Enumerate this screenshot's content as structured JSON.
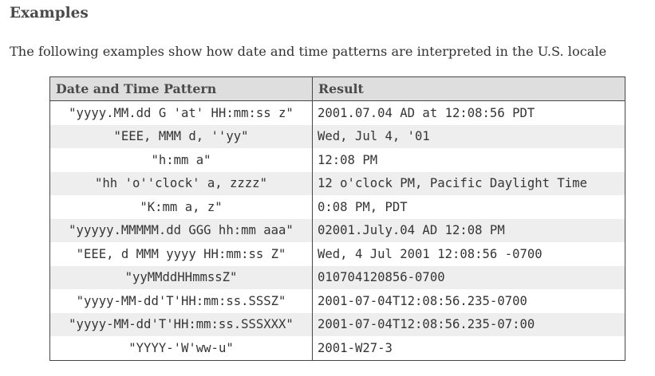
{
  "heading": "Examples",
  "intro": "The following examples show how date and time patterns are interpreted in the U.S. locale",
  "table": {
    "columns": [
      "Date and Time Pattern",
      "Result"
    ],
    "rows": [
      {
        "pattern": "\"yyyy.MM.dd G 'at' HH:mm:ss z\"",
        "result": "2001.07.04 AD at 12:08:56 PDT"
      },
      {
        "pattern": "\"EEE, MMM d, ''yy\"",
        "result": "Wed, Jul 4, '01"
      },
      {
        "pattern": "\"h:mm a\"",
        "result": "12:08 PM"
      },
      {
        "pattern": "\"hh 'o''clock' a, zzzz\"",
        "result": "12 o'clock PM, Pacific Daylight Time"
      },
      {
        "pattern": "\"K:mm a, z\"",
        "result": "0:08 PM, PDT"
      },
      {
        "pattern": "\"yyyyy.MMMMM.dd GGG hh:mm aaa\"",
        "result": "02001.July.04 AD 12:08 PM"
      },
      {
        "pattern": "\"EEE, d MMM yyyy HH:mm:ss Z\"",
        "result": "Wed, 4 Jul 2001 12:08:56 -0700"
      },
      {
        "pattern": "\"yyMMddHHmmssZ\"",
        "result": "010704120856-0700"
      },
      {
        "pattern": "\"yyyy-MM-dd'T'HH:mm:ss.SSSZ\"",
        "result": "2001-07-04T12:08:56.235-0700"
      },
      {
        "pattern": "\"yyyy-MM-dd'T'HH:mm:ss.SSSXXX\"",
        "result": "2001-07-04T12:08:56.235-07:00"
      },
      {
        "pattern": "\"YYYY-'W'ww-u\"",
        "result": "2001-W27-3"
      }
    ]
  }
}
